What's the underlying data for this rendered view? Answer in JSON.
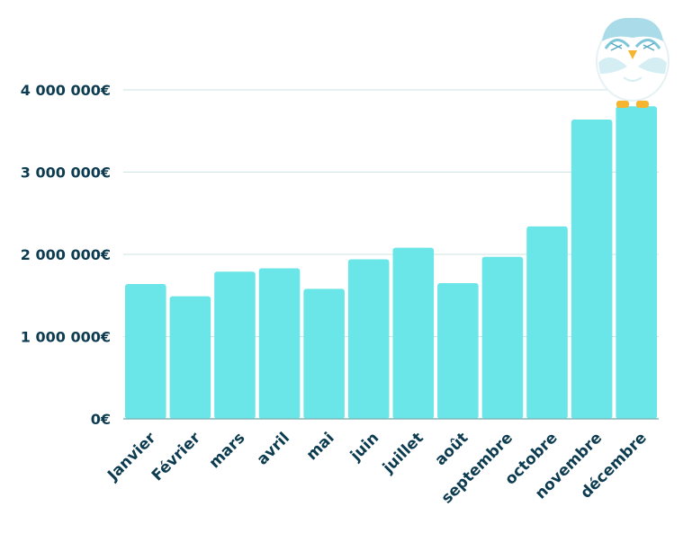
{
  "chart_data": {
    "type": "bar",
    "title": "",
    "xlabel": "",
    "ylabel": "",
    "categories": [
      "Janvier",
      "Février",
      "mars",
      "avril",
      "mai",
      "juin",
      "juillet",
      "août",
      "septembre",
      "octobre",
      "novembre",
      "décembre"
    ],
    "values": [
      1640000,
      1490000,
      1790000,
      1830000,
      1580000,
      1940000,
      2080000,
      1650000,
      1970000,
      2340000,
      3640000,
      3800000
    ],
    "ylim": [
      0,
      4000000
    ],
    "yticks": [
      0,
      1000000,
      2000000,
      3000000,
      4000000
    ],
    "ytick_labels": [
      "0€",
      "1 000 000€",
      "2 000 000€",
      "3 000 000€",
      "4 000 000€"
    ],
    "grid": true,
    "legend": "none",
    "colors": {
      "bar": "#6ae5e8",
      "text": "#0d3b50",
      "grid": "#cfe3e3"
    }
  },
  "decoration": {
    "icon": "owl-mascot-icon"
  }
}
